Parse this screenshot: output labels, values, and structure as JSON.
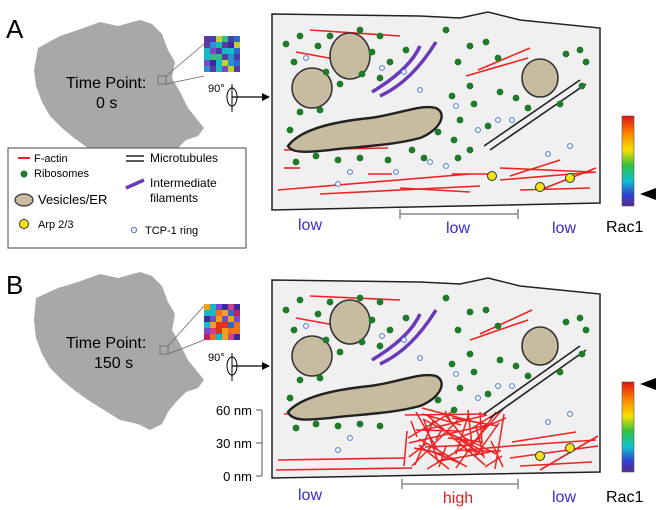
{
  "panelA": {
    "letter": "A",
    "time_line1": "Time Point:",
    "time_line2": "0 s",
    "rotation": "90°",
    "bottom_left": "low",
    "bottom_mid": "low",
    "bottom_right": "low",
    "colorbar_label": "Rac1"
  },
  "panelB": {
    "letter": "B",
    "time_line1": "Time Point:",
    "time_line2": "150 s",
    "rotation": "90°",
    "bottom_left": "low",
    "bottom_mid": "high",
    "bottom_right": "low",
    "colorbar_label": "Rac1",
    "scale": [
      "60 nm",
      "30 nm",
      "0 nm"
    ]
  },
  "legend": {
    "f_actin": "F-actin",
    "ribosomes": "Ribosomes",
    "vesicles": "Vesicles/ER",
    "arp": "Arp 2/3",
    "microtubules": "Microtubules",
    "intermediate_line1": "Intermediate",
    "intermediate_line2": "filaments",
    "tcp": "TCP-1 ring"
  },
  "colors": {
    "actin": "#ee2222",
    "ribosome": "#1f7a2a",
    "vesicle": "#c8bca0",
    "arp": "#f2e21a",
    "intermediate": "#6a3ab8",
    "tcp": "#4a78d0",
    "low_text": "#3a2ad0",
    "high_text": "#e02020",
    "cell_gray": "#a8a8a8"
  }
}
